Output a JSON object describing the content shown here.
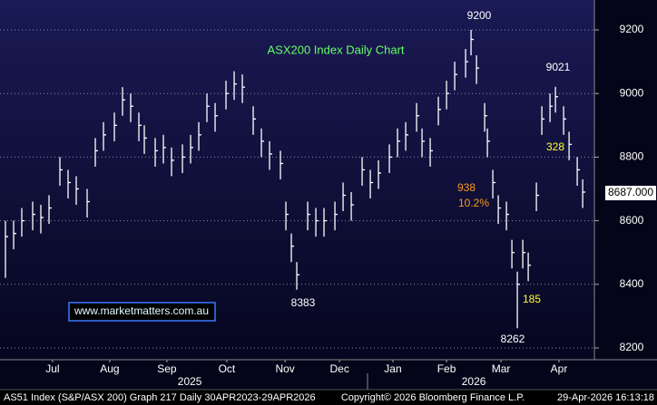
{
  "chart_data": {
    "type": "hlc",
    "title": "ASX200 Index Daily Chart",
    "x": [
      2,
      5,
      8,
      12,
      15,
      18,
      22,
      25,
      28,
      32,
      35,
      38,
      42,
      45,
      48,
      51,
      53,
      57,
      60,
      63,
      67,
      70,
      73,
      76,
      79,
      83,
      86,
      89,
      93,
      96,
      99,
      103,
      105,
      107,
      109,
      113,
      116,
      119,
      123,
      126,
      129,
      133,
      136,
      139,
      143,
      146,
      149,
      153,
      155,
      158,
      161,
      164,
      167,
      171,
      173,
      175,
      178,
      179,
      181,
      183,
      186,
      188,
      190,
      192,
      194,
      197,
      199,
      202,
      204,
      207,
      209,
      212,
      214
    ],
    "high": [
      8600,
      8600,
      8640,
      8660,
      8650,
      8680,
      8800,
      8760,
      8740,
      8700,
      8860,
      8910,
      8940,
      9020,
      9000,
      8940,
      8900,
      8860,
      8870,
      8830,
      8840,
      8870,
      8910,
      9000,
      8970,
      9040,
      9070,
      9060,
      8960,
      8890,
      8850,
      8820,
      8660,
      8560,
      8470,
      8660,
      8640,
      8640,
      8660,
      8720,
      8690,
      8800,
      8760,
      8790,
      8840,
      8890,
      8910,
      8970,
      8890,
      8860,
      8990,
      9040,
      9100,
      9140,
      9200,
      9120,
      8970,
      8890,
      8760,
      8680,
      8660,
      8540,
      8440,
      8540,
      8500,
      8720,
      8960,
      9000,
      9021,
      8960,
      8880,
      8800,
      8730
    ],
    "low": [
      8420,
      8510,
      8550,
      8570,
      8560,
      8590,
      8710,
      8670,
      8650,
      8610,
      8770,
      8820,
      8850,
      8930,
      8910,
      8850,
      8810,
      8770,
      8780,
      8740,
      8750,
      8780,
      8820,
      8910,
      8880,
      8950,
      8980,
      8970,
      8870,
      8800,
      8760,
      8730,
      8570,
      8470,
      8383,
      8570,
      8550,
      8550,
      8570,
      8630,
      8600,
      8710,
      8670,
      8700,
      8750,
      8800,
      8820,
      8880,
      8800,
      8770,
      8900,
      8950,
      9010,
      9050,
      9120,
      9030,
      8880,
      8800,
      8670,
      8590,
      8570,
      8450,
      8262,
      8450,
      8410,
      8630,
      8870,
      8910,
      8940,
      8870,
      8790,
      8710,
      8640
    ],
    "close": [
      8550,
      8560,
      8600,
      8620,
      8610,
      8640,
      8760,
      8720,
      8700,
      8660,
      8820,
      8870,
      8900,
      8980,
      8960,
      8900,
      8860,
      8820,
      8830,
      8790,
      8800,
      8830,
      8870,
      8960,
      8930,
      9000,
      9030,
      9020,
      8920,
      8850,
      8810,
      8780,
      8620,
      8520,
      8430,
      8620,
      8600,
      8600,
      8620,
      8680,
      8650,
      8760,
      8720,
      8750,
      8800,
      8850,
      8870,
      8930,
      8850,
      8820,
      8950,
      9000,
      9060,
      9100,
      9170,
      9080,
      8930,
      8850,
      8720,
      8640,
      8620,
      8500,
      8400,
      8500,
      8460,
      8680,
      8920,
      8960,
      8990,
      8920,
      8840,
      8760,
      8690
    ],
    "color": "#ffffff",
    "xlim": [
      0,
      218.3
    ],
    "xticks": [
      {
        "value": 19.3,
        "label": "Jul"
      },
      {
        "value": 40.3,
        "label": "Aug"
      },
      {
        "value": 61.3,
        "label": "Sep"
      },
      {
        "value": 83.3,
        "label": "Oct"
      },
      {
        "value": 104.7,
        "label": "Nov"
      },
      {
        "value": 124.7,
        "label": "Dec"
      },
      {
        "value": 144.3,
        "label": "Jan"
      },
      {
        "value": 164,
        "label": "Feb"
      },
      {
        "value": 184,
        "label": "Mar"
      },
      {
        "value": 205.3,
        "label": "Apr"
      }
    ],
    "years": [
      {
        "value": 69.7,
        "label": "2025"
      },
      {
        "value": 174,
        "label": "2026"
      }
    ],
    "ylim": [
      8163,
      9294
    ],
    "yticks": [
      8200,
      8400,
      8600,
      8800,
      9000,
      9200
    ],
    "grid": true,
    "last_price": {
      "value": 8687,
      "label": "8687.000"
    },
    "annotations": [
      "9200",
      "9021",
      "8383",
      "8262",
      "185",
      "328",
      "938",
      "10.2%"
    ],
    "website": "www.marketmatters.com.au",
    "footer": [
      "AS51 Index (S&P/ASX 200) Graph 217 Daily 30APR2023-29APR2026",
      "Copyright© 2026 Bloomberg Finance L.P.",
      "29-Apr-2026 16:13:18"
    ]
  }
}
